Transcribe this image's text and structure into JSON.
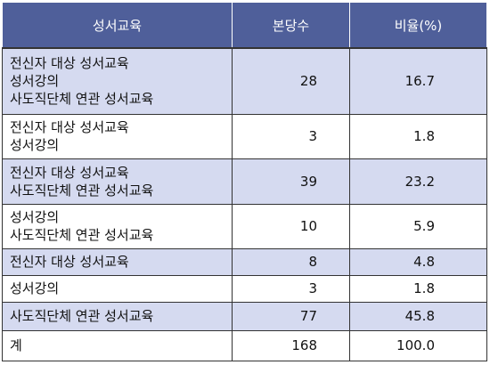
{
  "table": {
    "headers": {
      "category": "성서교육",
      "count": "본당수",
      "ratio": "비율(%)"
    },
    "rows": [
      {
        "lines": [
          "전신자 대상 성서교육",
          "성서강의",
          "사도직단체 연관 성서교육"
        ],
        "count": "28",
        "ratio": "16.7"
      },
      {
        "lines": [
          "전신자 대상 성서교육",
          "성서강의"
        ],
        "count": "3",
        "ratio": "1.8"
      },
      {
        "lines": [
          "전신자 대상 성서교육",
          "사도직단체 연관 성서교육"
        ],
        "count": "39",
        "ratio": "23.2"
      },
      {
        "lines": [
          "성서강의",
          "사도직단체 연관 성서교육"
        ],
        "count": "10",
        "ratio": "5.9"
      },
      {
        "lines": [
          "전신자 대상 성서교육"
        ],
        "count": "8",
        "ratio": "4.8"
      },
      {
        "lines": [
          "성서강의"
        ],
        "count": "3",
        "ratio": "1.8"
      },
      {
        "lines": [
          "사도직단체 연관 성서교육"
        ],
        "count": "77",
        "ratio": "45.8"
      }
    ],
    "total": {
      "label": "계",
      "count": "168",
      "ratio": "100.0"
    }
  },
  "colors": {
    "header_bg": "#4f5f9a",
    "shaded_row": "#d5daf0",
    "plain_row": "#ffffff"
  }
}
